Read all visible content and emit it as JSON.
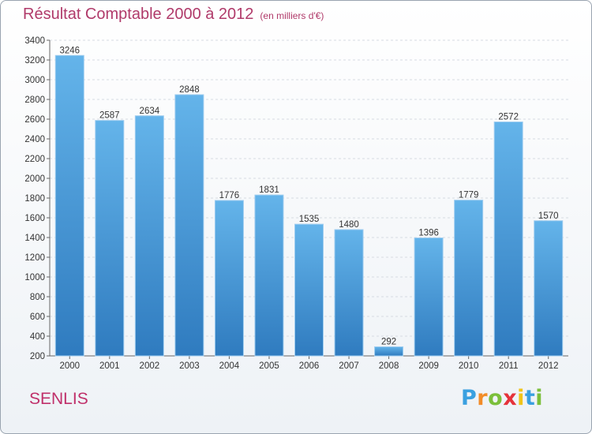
{
  "header": {
    "title": "Résultat Comptable 2000 à 2012",
    "subtitle": "(en milliers d'€)"
  },
  "footer": {
    "commune": "SENLIS",
    "brand_letters": [
      "P",
      "r",
      "o",
      "x",
      "i",
      "t",
      "i"
    ],
    "brand_colors": [
      "#3aa0e0",
      "#f28c28",
      "#7bbf3a",
      "#e5323a",
      "#f0c419",
      "#3aa0e0",
      "#7bbf3a"
    ]
  },
  "colors": {
    "bar_top": "#64b4ea",
    "bar_bottom": "#2f7bbf",
    "title": "#b03a6a"
  },
  "chart_data": {
    "type": "bar",
    "title": "Résultat Comptable 2000 à 2012",
    "subtitle": "(en milliers d'€)",
    "xlabel": "",
    "ylabel": "",
    "categories": [
      "2000",
      "2001",
      "2002",
      "2003",
      "2004",
      "2005",
      "2006",
      "2007",
      "2008",
      "2009",
      "2010",
      "2011",
      "2012"
    ],
    "values": [
      3246,
      2587,
      2634,
      2848,
      1776,
      1831,
      1535,
      1480,
      292,
      1396,
      1779,
      2572,
      1570
    ],
    "ylim": [
      200,
      3400
    ],
    "yticks": [
      200,
      400,
      600,
      800,
      1000,
      1200,
      1400,
      1600,
      1800,
      2000,
      2200,
      2400,
      2600,
      2800,
      3000,
      3200,
      3400
    ],
    "grid": true
  }
}
